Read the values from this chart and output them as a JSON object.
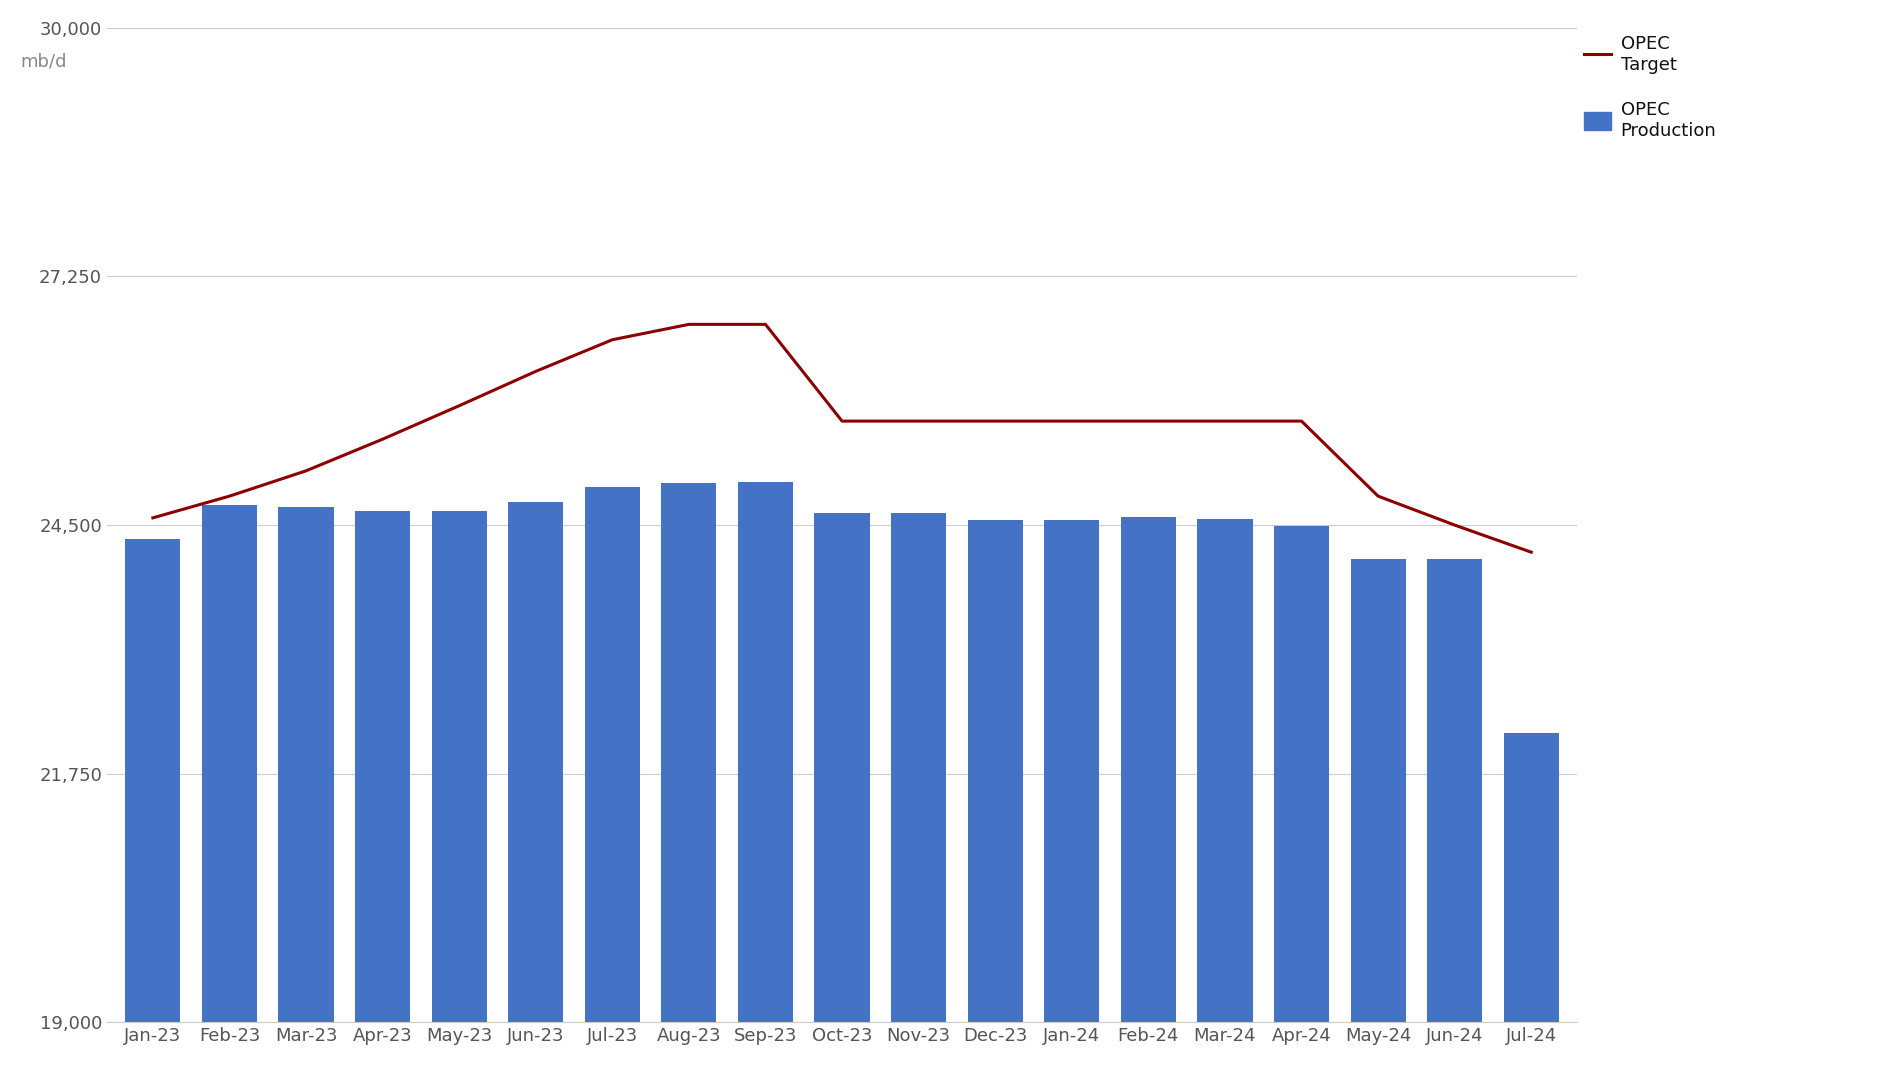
{
  "months": [
    "Jan-23",
    "Feb-23",
    "Mar-23",
    "Apr-23",
    "May-23",
    "Jun-23",
    "Jul-23",
    "Aug-23",
    "Sep-23",
    "Oct-23",
    "Nov-23",
    "Dec-23",
    "Jan-24",
    "Feb-24",
    "Mar-24",
    "Apr-24",
    "May-24",
    "Jun-24",
    "Jul-24"
  ],
  "production": [
    24350,
    24720,
    24700,
    24660,
    24660,
    24760,
    24920,
    24970,
    24980,
    24630,
    24630,
    24560,
    24560,
    24590,
    24570,
    24490,
    24130,
    24130,
    22200
  ],
  "target": [
    24580,
    24820,
    25100,
    25450,
    25820,
    26200,
    26550,
    26720,
    26720,
    25650,
    25650,
    25650,
    25650,
    25650,
    25650,
    25650,
    24820,
    24500,
    24200
  ],
  "bar_color": "#4472C4",
  "line_color": "#8B0000",
  "ylim": [
    19000,
    30000
  ],
  "yticks": [
    19000,
    21750,
    24500,
    27250,
    30000
  ],
  "ytick_labels": [
    "19,000",
    "21,750",
    "24,500",
    "27,250",
    "30,000"
  ],
  "grid_color": "#cccccc",
  "background_color": "#ffffff",
  "legend_bar_label": "OPEC\nProduction",
  "legend_line_label": "OPEC\nTarget",
  "ylabel": "mb/d",
  "ylabel_color": "#888888",
  "tick_color": "#555555",
  "tick_fontsize": 13,
  "legend_fontsize": 13,
  "line_width": 2.2,
  "bar_width": 0.72
}
